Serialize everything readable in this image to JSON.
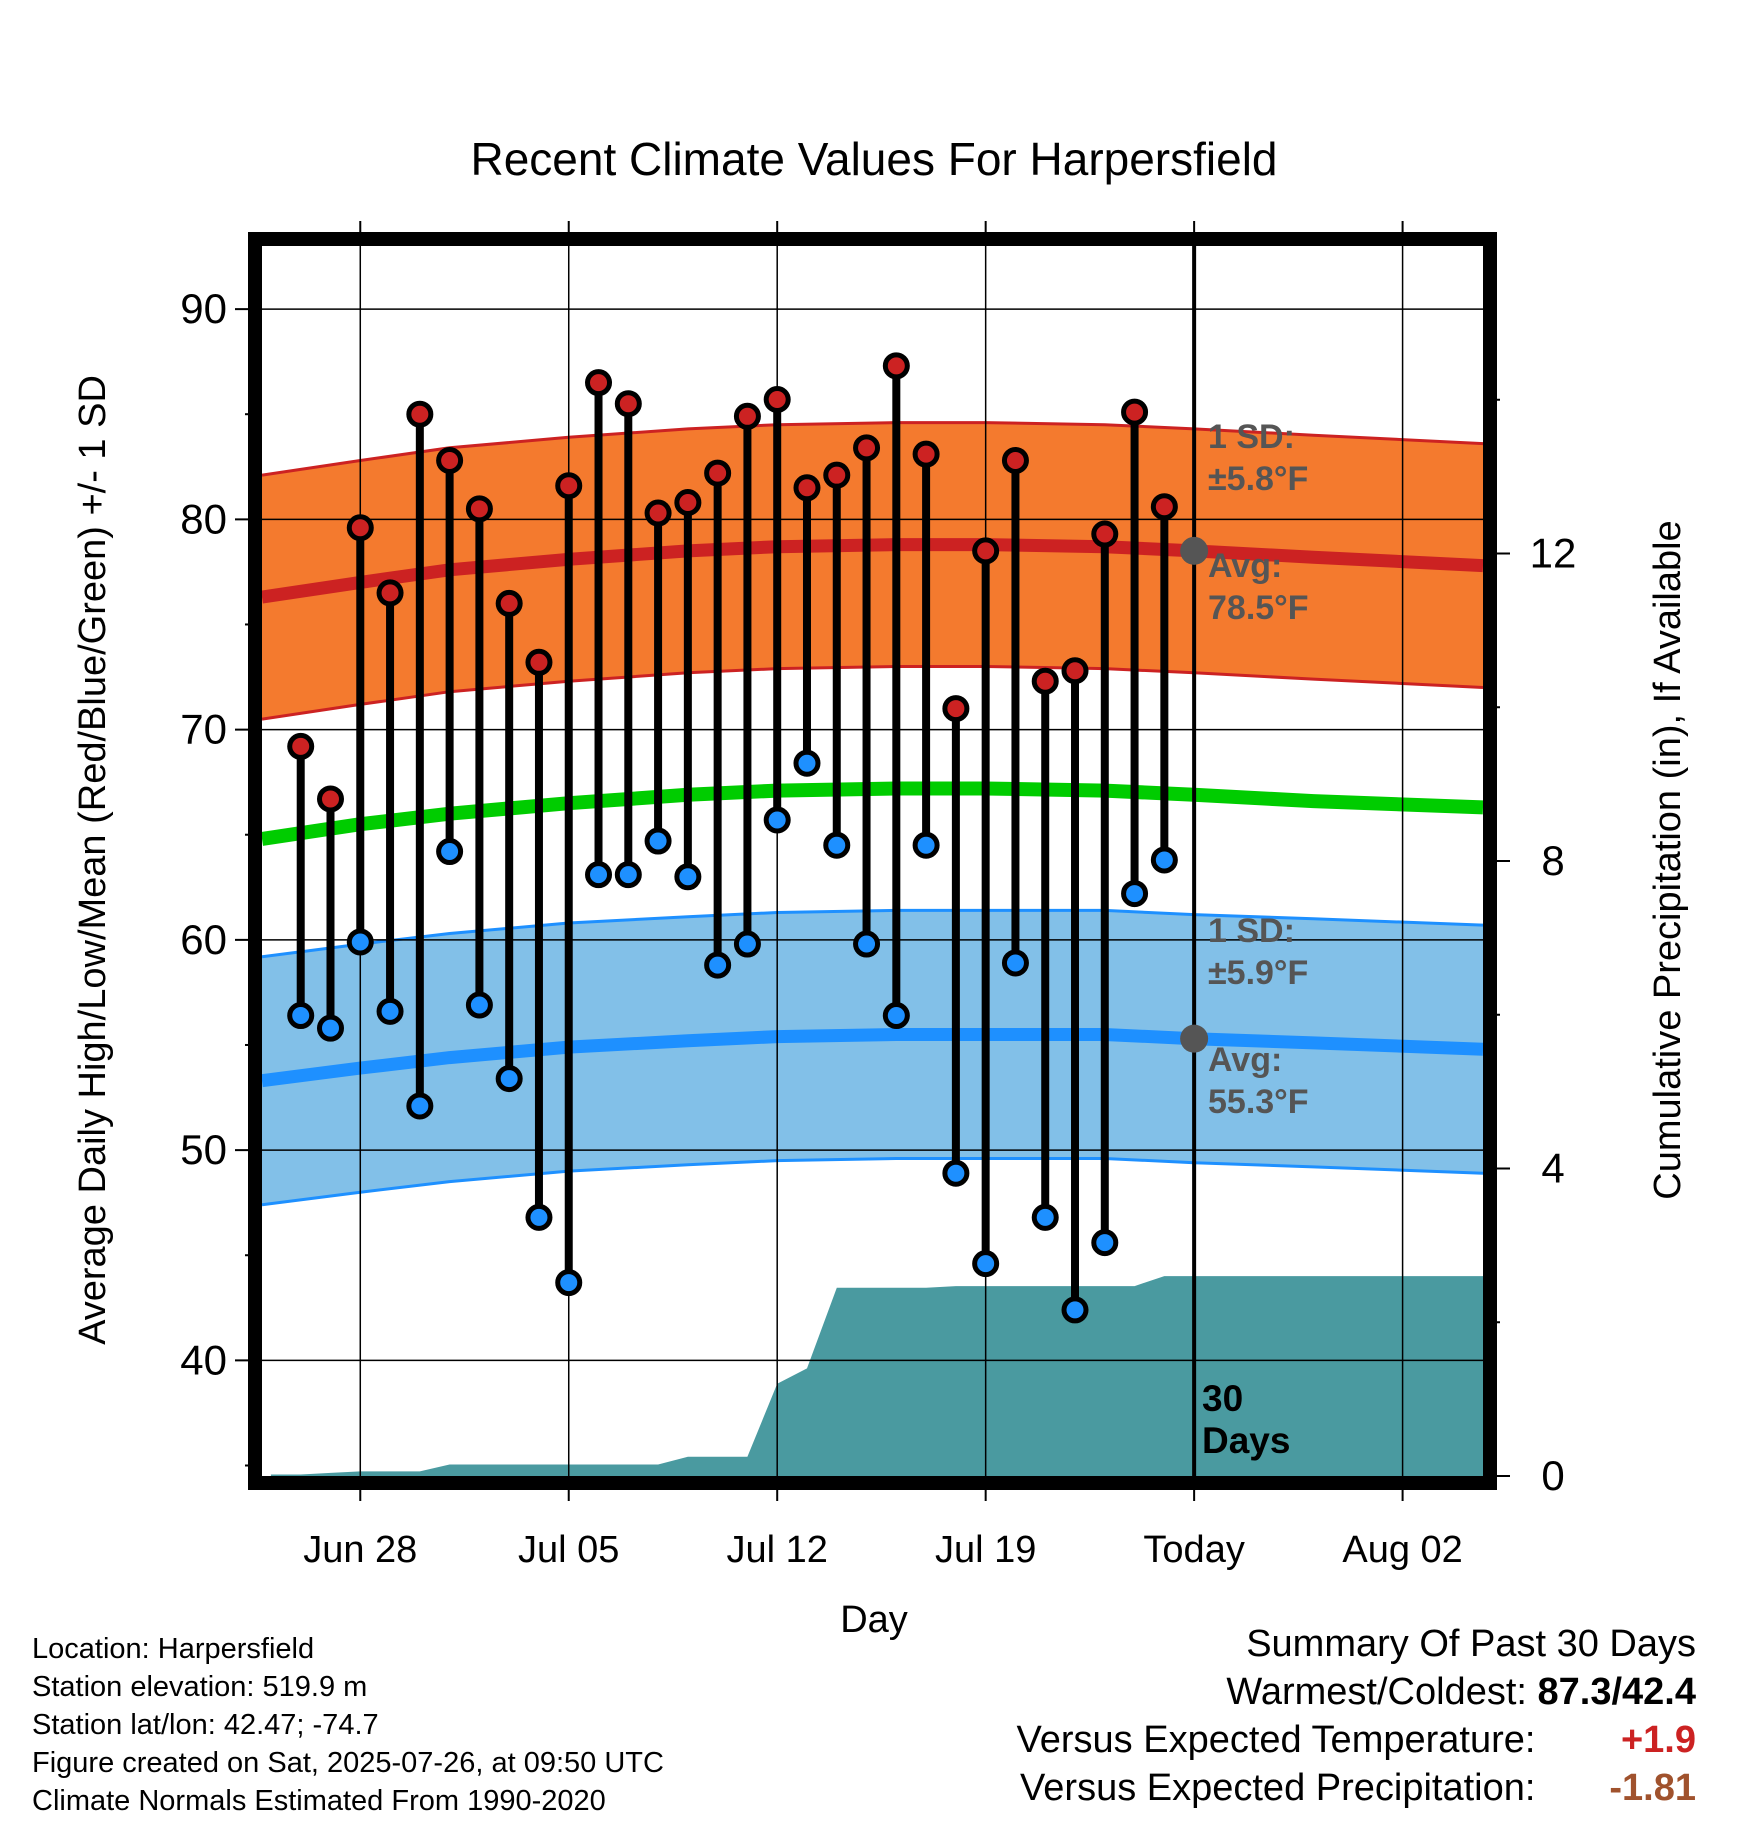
{
  "chart_data": {
    "type": "line",
    "title": "Recent Climate Values For Harpersfield",
    "xlabel": "Day",
    "ylabel_left": "Average Daily High/Low/Mean (Red/Blue/Green) +/- 1 SD",
    "ylabel_right": "Cumulative Precipitation (in), If Available",
    "x_ticks": [
      "Jun 28",
      "Jul 05",
      "Jul 12",
      "Jul 19",
      "Today",
      "Aug 02"
    ],
    "x_tick_dates": [
      "2025-06-28",
      "2025-07-05",
      "2025-07-12",
      "2025-07-19",
      "2025-07-26",
      "2025-08-02"
    ],
    "x_range": [
      "2025-06-24.7",
      "2025-08-04.7"
    ],
    "ylim_left": [
      34.5,
      93
    ],
    "y_ticks_left": [
      40,
      50,
      60,
      70,
      80,
      90
    ],
    "ylim_right": [
      0,
      16
    ],
    "y_ticks_right": [
      0,
      4,
      8,
      12
    ],
    "grid": true,
    "dates": [
      "2025-06-26",
      "2025-06-27",
      "2025-06-28",
      "2025-06-29",
      "2025-06-30",
      "2025-07-01",
      "2025-07-02",
      "2025-07-03",
      "2025-07-04",
      "2025-07-05",
      "2025-07-06",
      "2025-07-07",
      "2025-07-08",
      "2025-07-09",
      "2025-07-10",
      "2025-07-11",
      "2025-07-12",
      "2025-07-13",
      "2025-07-14",
      "2025-07-15",
      "2025-07-16",
      "2025-07-17",
      "2025-07-18",
      "2025-07-19",
      "2025-07-20",
      "2025-07-21",
      "2025-07-22",
      "2025-07-23",
      "2025-07-24",
      "2025-07-25"
    ],
    "series": [
      {
        "name": "High",
        "color": "#cc2222",
        "values": [
          69.2,
          66.7,
          79.6,
          76.5,
          85.0,
          82.8,
          80.5,
          76.0,
          73.2,
          81.6,
          86.5,
          85.5,
          80.3,
          80.8,
          82.2,
          84.9,
          85.7,
          81.5,
          82.1,
          83.4,
          87.3,
          83.1,
          71.0,
          78.5,
          82.8,
          72.3,
          72.8,
          79.3,
          85.1,
          80.6
        ]
      },
      {
        "name": "Low",
        "color": "#1e90ff",
        "values": [
          56.4,
          55.8,
          59.9,
          56.6,
          52.1,
          64.2,
          56.9,
          53.4,
          46.8,
          43.7,
          63.1,
          63.1,
          64.7,
          63.0,
          58.8,
          59.8,
          65.7,
          68.4,
          64.5,
          59.8,
          56.4,
          64.5,
          48.9,
          44.6,
          58.9,
          46.8,
          42.4,
          45.6,
          62.2,
          63.8
        ]
      }
    ],
    "normals": {
      "dates": [
        "2025-06-24.7",
        "2025-06-28",
        "2025-07-01",
        "2025-07-05",
        "2025-07-09",
        "2025-07-12",
        "2025-07-16",
        "2025-07-19",
        "2025-07-23",
        "2025-07-26",
        "2025-07-30",
        "2025-08-04.7"
      ],
      "high_avg": [
        76.3,
        77.0,
        77.6,
        78.1,
        78.5,
        78.7,
        78.8,
        78.8,
        78.7,
        78.5,
        78.2,
        77.8
      ],
      "high_sd": 5.8,
      "low_avg": [
        53.3,
        53.9,
        54.4,
        54.9,
        55.2,
        55.4,
        55.5,
        55.5,
        55.5,
        55.3,
        55.1,
        54.8
      ],
      "low_sd": 5.9,
      "mean_avg": [
        64.8,
        65.5,
        66.0,
        66.5,
        66.9,
        67.1,
        67.2,
        67.2,
        67.1,
        66.9,
        66.6,
        66.3
      ],
      "band_colors": {
        "high": "#f47a2e",
        "low": "#82c0e8",
        "mean": "#00cc00"
      }
    },
    "precip": {
      "color": "#4a9aa0",
      "dates": [
        "2025-06-25",
        "2025-06-26",
        "2025-06-27",
        "2025-06-28",
        "2025-06-29",
        "2025-06-30",
        "2025-07-01",
        "2025-07-02",
        "2025-07-03",
        "2025-07-04",
        "2025-07-05",
        "2025-07-06",
        "2025-07-07",
        "2025-07-08",
        "2025-07-09",
        "2025-07-10",
        "2025-07-11",
        "2025-07-12",
        "2025-07-13",
        "2025-07-14",
        "2025-07-15",
        "2025-07-16",
        "2025-07-17",
        "2025-07-18",
        "2025-07-19",
        "2025-07-20",
        "2025-07-21",
        "2025-07-22",
        "2025-07-23",
        "2025-07-24",
        "2025-07-25",
        "2025-07-26",
        "2025-08-04.7"
      ],
      "values": [
        0.02,
        0.02,
        0.04,
        0.06,
        0.06,
        0.06,
        0.15,
        0.15,
        0.15,
        0.15,
        0.15,
        0.15,
        0.15,
        0.15,
        0.25,
        0.25,
        0.25,
        1.2,
        1.4,
        2.45,
        2.45,
        2.45,
        2.45,
        2.47,
        2.47,
        2.47,
        2.47,
        2.47,
        2.47,
        2.47,
        2.6,
        2.6,
        2.6
      ]
    },
    "annotations": {
      "high_sd": "1 SD:\n±5.8°F",
      "high_avg": "Avg:\n78.5°F",
      "low_sd": "1 SD:\n±5.9°F",
      "low_avg": "Avg:\n55.3°F",
      "days": "30\nDays"
    }
  },
  "footer": {
    "location": "Location: Harpersfield",
    "elevation": "Station elevation: 519.9 m",
    "latlon": "Station lat/lon: 42.47; -74.7",
    "created": "Figure created on Sat, 2025-07-26, at 09:50 UTC",
    "normals": "Climate Normals Estimated From 1990-2020"
  },
  "summary": {
    "title": "Summary Of Past 30 Days",
    "warm_cold_label": "Warmest/Coldest:",
    "warm_cold_value": "87.3/42.4",
    "temp_label": "Versus Expected Temperature:",
    "temp_value": "+1.9",
    "temp_color": "#cc2222",
    "precip_label": "Versus Expected Precipitation:",
    "precip_value": "-1.81",
    "precip_color": "#a0522d"
  }
}
